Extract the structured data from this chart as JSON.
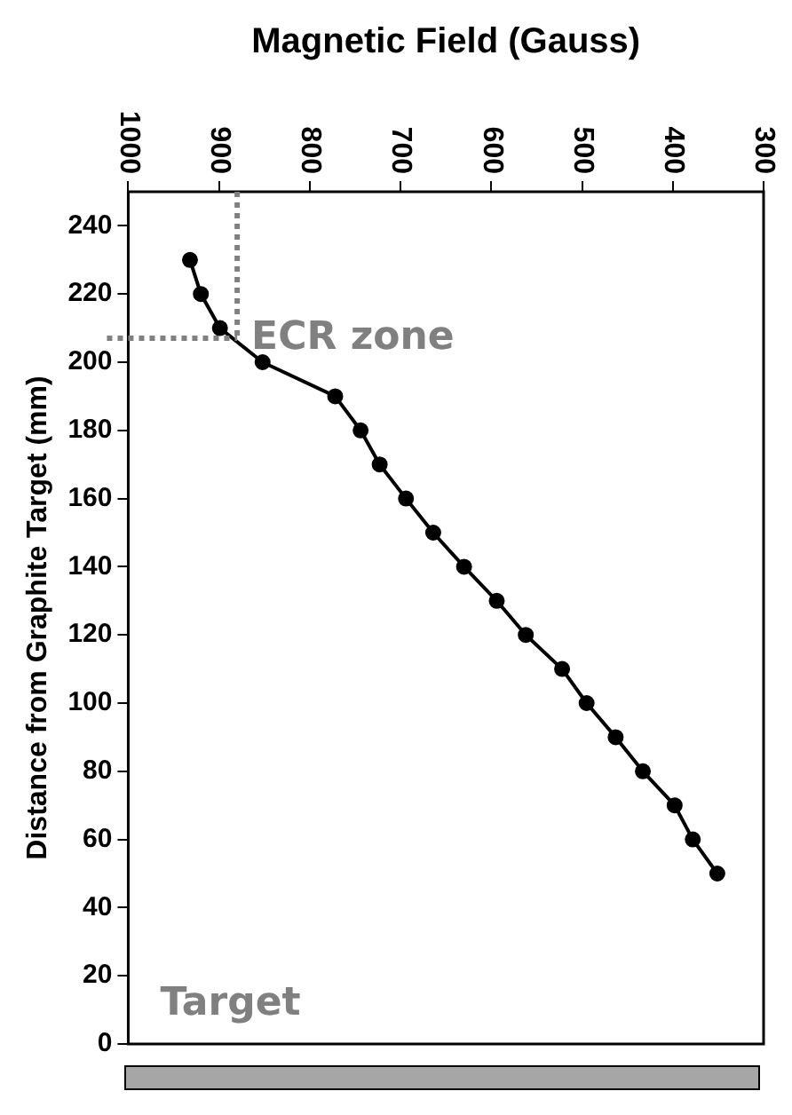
{
  "chart_data": {
    "type": "line",
    "xlabel": "Magnetic Field (Gauss)",
    "ylabel": "Distance from Graphite Target (mm)",
    "annotations": [
      "ECR zone",
      "Target"
    ],
    "series": [
      {
        "color": "#000000",
        "x": [
          932,
          920,
          899,
          852,
          772,
          744,
          723,
          694,
          664,
          630,
          594,
          562,
          522,
          495,
          463,
          433,
          398,
          378,
          351
        ],
        "values": [
          230,
          220,
          210,
          200,
          190,
          180,
          170,
          160,
          150,
          140,
          130,
          120,
          110,
          100,
          90,
          80,
          70,
          60,
          50
        ]
      }
    ],
    "xlim": [
      1000,
      300
    ],
    "xticks": [
      1000,
      900,
      800,
      700,
      600,
      500,
      400,
      300
    ],
    "ylim": [
      0,
      250
    ],
    "yticks": [
      0,
      20,
      40,
      60,
      80,
      100,
      120,
      140,
      160,
      180,
      200,
      220,
      240
    ],
    "ref_lines": [
      {
        "axis": "x",
        "value": 880,
        "color": "#808080",
        "line_style": "dotted"
      },
      {
        "axis": "y",
        "value": 207,
        "color": "#808080",
        "line_style": "dotted"
      }
    ],
    "grid": false,
    "legend": false,
    "marker": "circle",
    "line_style": "solid"
  }
}
